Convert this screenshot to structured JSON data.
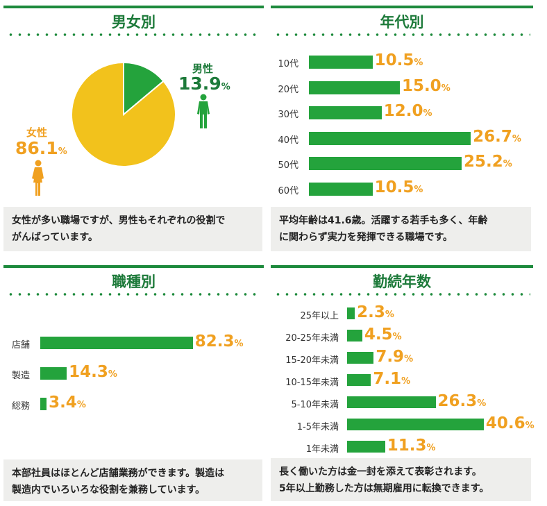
{
  "colors": {
    "green": "#24a33c",
    "dark_green": "#1d7a3a",
    "orange": "#f0a020",
    "yellow": "#f2c21c"
  },
  "chart_data": [
    {
      "type": "pie",
      "title": "男女別",
      "categories": [
        "男性",
        "女性"
      ],
      "values": [
        13.9,
        86.1
      ],
      "unit": "%",
      "caption": [
        "女性が多い職場ですが、男性もそれぞれの役割で",
        "がんばっています。"
      ]
    },
    {
      "type": "bar",
      "orientation": "horizontal",
      "title": "年代別",
      "categories": [
        "10代",
        "20代",
        "30代",
        "40代",
        "50代",
        "60代"
      ],
      "values": [
        10.5,
        15.0,
        12.0,
        26.7,
        25.2,
        10.5
      ],
      "labels": [
        "10.5",
        "15.0",
        "12.0",
        "26.7",
        "25.2",
        "10.5"
      ],
      "unit": "%",
      "caption": [
        "平均年齢は41.6歳。活躍する若手も多く、年齢",
        "に関わらず実力を発揮できる職場です。"
      ]
    },
    {
      "type": "bar",
      "orientation": "horizontal",
      "title": "職種別",
      "categories": [
        "店舗",
        "製造",
        "総務"
      ],
      "values": [
        82.3,
        14.3,
        3.4
      ],
      "labels": [
        "82.3",
        "14.3",
        "3.4"
      ],
      "unit": "%",
      "caption": [
        "本部社員はほとんど店舗業務ができます。製造は",
        "製造内でいろいろな役割を兼務しています。"
      ]
    },
    {
      "type": "bar",
      "orientation": "horizontal",
      "title": "勤続年数",
      "categories": [
        "25年以上",
        "20-25年未満",
        "15-20年未満",
        "10-15年未満",
        "5-10年未満",
        "1-5年未満",
        "1年未満"
      ],
      "values": [
        2.3,
        4.5,
        7.9,
        7.1,
        26.3,
        40.6,
        11.3
      ],
      "labels": [
        "2.3",
        "4.5",
        "7.9",
        "7.1",
        "26.3",
        "40.6",
        "11.3"
      ],
      "unit": "%",
      "caption": [
        "長く働いた方は金一封を添えて表彰されます。",
        "5年以上勤務した方は無期雇用に転換できます。"
      ]
    }
  ]
}
